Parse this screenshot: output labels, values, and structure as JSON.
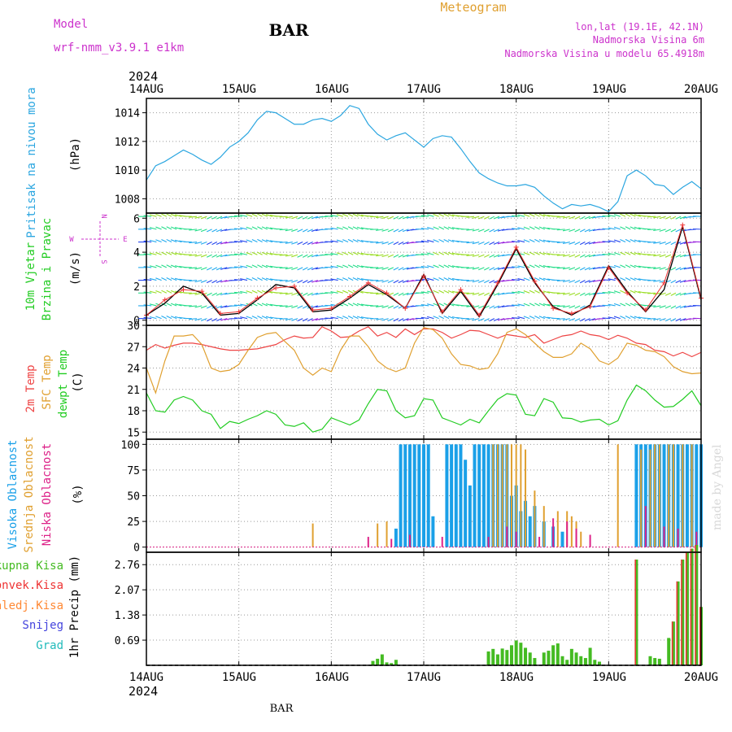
{
  "header": {
    "model_label": "Model",
    "model_name": "wrf-nmm_v3.9.1 e1km",
    "station": "BAR",
    "chart_title": "Meteogram",
    "coords": "lon,lat (19.1E, 42.1N)",
    "elevation": "Nadmorska Visina 6m",
    "model_elevation": "Nadmorska Visina u modelu 65.4918m",
    "footer_station": "BAR",
    "watermark": "made by Angel"
  },
  "time_axis": {
    "year": "2024",
    "ticks": [
      "14AUG",
      "15AUG",
      "16AUG",
      "17AUG",
      "18AUG",
      "19AUG",
      "20AUG"
    ]
  },
  "colors": {
    "pressure": "#2ba6e0",
    "wind_speed": "#000000",
    "wind_gust": "#ee3333",
    "temp2m": "#ee4444",
    "sfc_temp": "#e0a030",
    "dewpoint": "#22cc22",
    "high_cloud": "#1aa0e8",
    "mid_cloud": "#e0a030",
    "low_cloud": "#dd2288",
    "total_rain": "#44bb22",
    "conv_rain": "#ee3333",
    "freezing_rain": "#ff8833",
    "snow": "#4444dd",
    "hail": "#22bbbb",
    "wind_label": "#cc33cc"
  },
  "chart_data": [
    {
      "type": "line",
      "name": "pressure",
      "ylabel_main": "Pritisak na nivou mora",
      "ylabel_unit": "(hPa)",
      "ylim": [
        1007,
        1015
      ],
      "yticks": [
        "1008",
        "1010",
        "1012",
        "1014"
      ],
      "grid": true,
      "x": [
        0,
        0.1,
        0.2,
        0.3,
        0.4,
        0.5,
        0.6,
        0.7,
        0.8,
        0.9,
        1,
        1.1,
        1.2,
        1.3,
        1.4,
        1.5,
        1.6,
        1.7,
        1.8,
        1.9,
        2,
        2.1,
        2.2,
        2.3,
        2.4,
        2.5,
        2.6,
        2.7,
        2.8,
        2.9,
        3,
        3.1,
        3.2,
        3.3,
        3.4,
        3.5,
        3.6,
        3.7,
        3.8,
        3.9,
        4,
        4.1,
        4.2,
        4.3,
        4.4,
        4.5,
        4.6,
        4.7,
        4.8,
        4.9,
        5,
        5.1,
        5.2,
        5.3,
        5.4,
        5.5,
        5.6,
        5.7,
        5.8,
        5.9,
        6
      ],
      "values": [
        1009.3,
        1010.3,
        1010.6,
        1011,
        1011.4,
        1011.1,
        1010.7,
        1010.4,
        1010.9,
        1011.6,
        1012,
        1012.6,
        1013.5,
        1014.1,
        1014,
        1013.6,
        1013.2,
        1013.2,
        1013.5,
        1013.6,
        1013.4,
        1013.8,
        1014.5,
        1014.3,
        1013.2,
        1012.5,
        1012.1,
        1012.4,
        1012.6,
        1012.1,
        1011.6,
        1012.2,
        1012.4,
        1012.3,
        1011.5,
        1010.6,
        1009.8,
        1009.4,
        1009.1,
        1008.9,
        1008.9,
        1009,
        1008.8,
        1008.2,
        1007.7,
        1007.3,
        1007.6,
        1007.5,
        1007.6,
        1007.4,
        1007.1,
        1007.8,
        1009.6,
        1010,
        1009.6,
        1009,
        1008.9,
        1008.3,
        1008.8,
        1009.2,
        1008.7
      ]
    },
    {
      "type": "vector",
      "name": "wind",
      "ylabel_main": "10m Vjetar",
      "ylabel_sub": "Brzina i Pravac",
      "ylabel_unit": "(m/s)",
      "compass": {
        "n": "N",
        "w": "W",
        "e": "E",
        "s": "S"
      },
      "ylim": [
        -0.3,
        6.3
      ],
      "yticks": [
        "0",
        "2",
        "4",
        "6"
      ],
      "grid": true,
      "x": [
        0,
        0.2,
        0.4,
        0.6,
        0.8,
        1,
        1.2,
        1.4,
        1.6,
        1.8,
        2,
        2.2,
        2.4,
        2.6,
        2.8,
        3,
        3.2,
        3.4,
        3.6,
        3.8,
        4,
        4.2,
        4.4,
        4.6,
        4.8,
        5,
        5.2,
        5.4,
        5.6,
        5.8,
        6
      ],
      "speed": [
        0.3,
        1,
        2,
        1.6,
        0.3,
        0.4,
        1.2,
        2.1,
        1.9,
        0.5,
        0.6,
        1.3,
        2.1,
        1.5,
        0.7,
        2.7,
        0.4,
        1.7,
        0.2,
        2.1,
        4.2,
        2.2,
        0.8,
        0.3,
        0.9,
        3.2,
        1.7,
        0.5,
        1.8,
        5.5,
        1.2
      ],
      "gust": [
        0.3,
        1.2,
        1.8,
        1.7,
        0.4,
        0.5,
        1.3,
        1.9,
        2,
        0.6,
        0.7,
        1.4,
        2.2,
        1.6,
        0.7,
        2.6,
        0.5,
        1.8,
        0.3,
        2.2,
        4.3,
        2.3,
        0.7,
        0.4,
        0.8,
        3.1,
        1.6,
        0.6,
        2.2,
        5.6,
        1.3
      ]
    },
    {
      "type": "line",
      "name": "temperature",
      "ylabel_main": "2m Temp",
      "ylabel_sub": "SFC Temp",
      "ylabel_sub2": "dewpt Temp",
      "ylabel_unit": "(C)",
      "ylim": [
        14,
        30
      ],
      "yticks": [
        "15",
        "18",
        "21",
        "24",
        "27",
        "30"
      ],
      "grid": true,
      "x": [
        0,
        0.1,
        0.2,
        0.3,
        0.4,
        0.5,
        0.6,
        0.7,
        0.8,
        0.9,
        1,
        1.1,
        1.2,
        1.3,
        1.4,
        1.5,
        1.6,
        1.7,
        1.8,
        1.9,
        2,
        2.1,
        2.2,
        2.3,
        2.4,
        2.5,
        2.6,
        2.7,
        2.8,
        2.9,
        3,
        3.1,
        3.2,
        3.3,
        3.4,
        3.5,
        3.6,
        3.7,
        3.8,
        3.9,
        4,
        4.1,
        4.2,
        4.3,
        4.4,
        4.5,
        4.6,
        4.7,
        4.8,
        4.9,
        5,
        5.1,
        5.2,
        5.3,
        5.4,
        5.5,
        5.6,
        5.7,
        5.8,
        5.9,
        6
      ],
      "series": [
        {
          "key": "temp2m",
          "values": [
            26.5,
            27.3,
            26.8,
            27.2,
            27.5,
            27.5,
            27.3,
            27,
            26.7,
            26.5,
            26.5,
            26.6,
            26.7,
            27,
            27.3,
            28,
            28.5,
            28.2,
            28.3,
            29.8,
            29.2,
            28.3,
            28.4,
            29.2,
            29.8,
            28.5,
            29,
            28.3,
            29.5,
            28.7,
            29.5,
            29.5,
            29,
            28.2,
            28.7,
            29.3,
            29.2,
            28.7,
            28.2,
            28.7,
            28.5,
            28.3,
            28.7,
            27.5,
            28,
            28.5,
            28.7,
            29.2,
            28.7,
            28.5,
            28,
            28.6,
            28.2,
            27.5,
            27.3,
            26.5,
            26.3,
            25.7,
            26.2,
            25.6,
            26.2
          ]
        },
        {
          "key": "sfc_temp",
          "values": [
            24,
            20.5,
            25,
            28.5,
            28.5,
            28.7,
            27.3,
            24,
            23.5,
            23.7,
            24.5,
            26.5,
            28.3,
            28.8,
            29,
            27.7,
            26.5,
            24,
            23,
            24,
            23.5,
            26.5,
            28.5,
            28.5,
            27,
            25,
            24,
            23.5,
            24,
            27.5,
            29.7,
            29.4,
            28.2,
            26,
            24.5,
            24.3,
            23.8,
            24,
            26,
            29,
            29.5,
            28.7,
            27.5,
            26.3,
            25.5,
            25.5,
            26,
            27.5,
            26.7,
            25,
            24.5,
            25.4,
            27.5,
            27.2,
            26.5,
            26.3,
            25.6,
            24.2,
            23.5,
            23.2,
            23.3
          ]
        },
        {
          "key": "dewpoint",
          "values": [
            20.5,
            18,
            17.8,
            19.5,
            20,
            19.5,
            18,
            17.5,
            15.5,
            16.5,
            16.2,
            16.8,
            17.3,
            18,
            17.5,
            16,
            15.8,
            16.3,
            15,
            15.4,
            17,
            16.5,
            16,
            16.7,
            19,
            21,
            20.8,
            18,
            17,
            17.3,
            19.7,
            19.5,
            17,
            16.5,
            16,
            16.8,
            16.3,
            18,
            19.6,
            20.4,
            20.2,
            17.5,
            17.3,
            19.7,
            19.2,
            17,
            16.9,
            16.4,
            16.7,
            16.8,
            16,
            16.6,
            19.5,
            21.6,
            20.8,
            19.5,
            18.5,
            18.6,
            19.6,
            20.8,
            18.7
          ]
        }
      ]
    },
    {
      "type": "bar",
      "name": "cloud",
      "ylabel_main": "Visoka Oblacnost",
      "ylabel_sub": "Srednja Oblacnost",
      "ylabel_sub2": "Niska Oblacnost",
      "ylabel_unit": "(%)",
      "ylim": [
        -5,
        105
      ],
      "yticks": [
        "0",
        "25",
        "50",
        "75",
        "100"
      ],
      "grid": true,
      "series": [
        {
          "key": "high_cloud",
          "x": [
            2.7,
            2.75,
            2.8,
            2.85,
            2.9,
            2.95,
            3.0,
            3.05,
            3.1,
            3.25,
            3.3,
            3.35,
            3.4,
            3.45,
            3.5,
            3.55,
            3.6,
            3.65,
            3.7,
            3.75,
            3.8,
            3.85,
            3.9,
            3.95,
            4.0,
            4.05,
            4.1,
            4.15,
            4.2,
            4.3,
            4.4,
            4.5,
            5.3,
            5.35,
            5.4,
            5.45,
            5.5,
            5.55,
            5.6,
            5.65,
            5.7,
            5.75,
            5.8,
            5.85,
            5.9,
            5.95,
            6.0
          ],
          "values": [
            18,
            100,
            100,
            100,
            100,
            100,
            100,
            100,
            30,
            100,
            100,
            100,
            100,
            85,
            60,
            100,
            100,
            100,
            100,
            100,
            100,
            100,
            100,
            50,
            60,
            35,
            45,
            30,
            40,
            25,
            20,
            15,
            100,
            100,
            100,
            100,
            100,
            100,
            100,
            100,
            100,
            100,
            100,
            100,
            100,
            100,
            100
          ]
        },
        {
          "key": "mid_cloud",
          "x": [
            1.8,
            2.5,
            2.6,
            3.75,
            3.8,
            3.85,
            3.9,
            3.95,
            4.0,
            4.05,
            4.1,
            4.2,
            4.3,
            4.45,
            4.55,
            4.6,
            4.65,
            4.7,
            5.1,
            5.35,
            5.45,
            5.5,
            5.55,
            5.65,
            5.7,
            5.8,
            5.9
          ],
          "values": [
            23,
            23,
            25,
            100,
            100,
            100,
            100,
            100,
            100,
            100,
            95,
            55,
            40,
            35,
            35,
            30,
            25,
            15,
            100,
            95,
            95,
            100,
            100,
            100,
            100,
            100,
            100
          ]
        },
        {
          "key": "low_cloud",
          "x": [
            2.4,
            2.65,
            2.85,
            3.2,
            3.7,
            3.9,
            4.0,
            4.25,
            4.4,
            4.55,
            4.65,
            4.8,
            5.4,
            5.6,
            5.75,
            5.95
          ],
          "values": [
            10,
            8,
            12,
            10,
            10,
            20,
            15,
            10,
            28,
            25,
            18,
            12,
            40,
            20,
            18,
            15
          ]
        }
      ]
    },
    {
      "type": "bar",
      "name": "precip",
      "ylabel_main": "1hr Precip (mm)",
      "legend": [
        "Ukupna Kisa",
        "Konvek.Kisa",
        "Zaledj.Kisa",
        "Snijeg",
        "Grad"
      ],
      "ylim": [
        0,
        3.1
      ],
      "yticks": [
        "0.69",
        "1.38",
        "2.07",
        "2.76"
      ],
      "grid": true,
      "x": [
        2.45,
        2.5,
        2.55,
        2.6,
        2.65,
        2.7,
        3.7,
        3.75,
        3.8,
        3.85,
        3.9,
        3.95,
        4.0,
        4.05,
        4.1,
        4.15,
        4.2,
        4.3,
        4.35,
        4.4,
        4.45,
        4.5,
        4.55,
        4.6,
        4.65,
        4.7,
        4.75,
        4.8,
        4.85,
        4.9,
        5.3,
        5.45,
        5.5,
        5.55,
        5.65,
        5.7,
        5.75,
        5.8,
        5.85,
        5.9,
        5.95,
        6.0
      ],
      "values": [
        0.12,
        0.18,
        0.3,
        0.08,
        0.06,
        0.15,
        0.38,
        0.45,
        0.3,
        0.46,
        0.42,
        0.55,
        0.68,
        0.62,
        0.48,
        0.35,
        0.2,
        0.35,
        0.4,
        0.55,
        0.6,
        0.25,
        0.15,
        0.45,
        0.35,
        0.25,
        0.2,
        0.48,
        0.15,
        0.1,
        2.9,
        0.25,
        0.2,
        0.18,
        0.75,
        1.2,
        2.3,
        2.9,
        3.1,
        3.2,
        3.3,
        1.6
      ]
    }
  ]
}
